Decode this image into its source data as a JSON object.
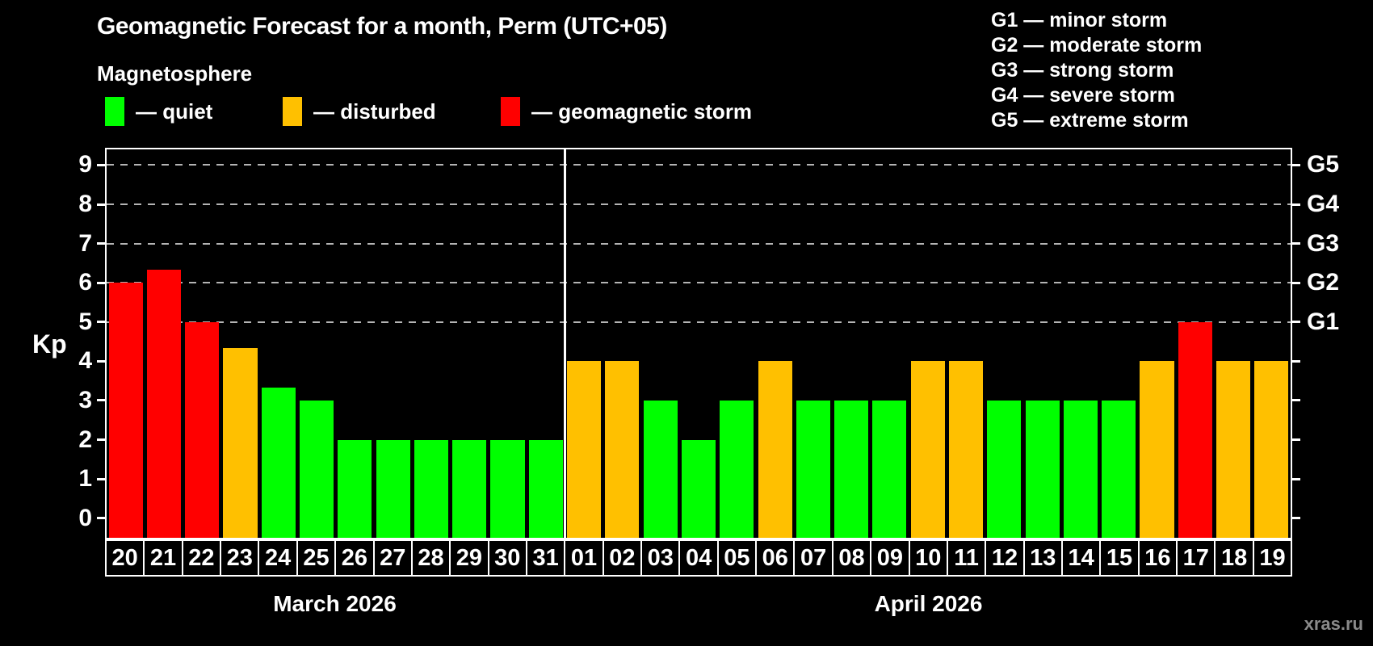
{
  "title": "Geomagnetic Forecast for a month, Perm (UTC+05)",
  "subtitle": "Magnetosphere",
  "legend": {
    "quiet": {
      "label": "— quiet",
      "color": "#00ff00"
    },
    "disturbed": {
      "label": "— disturbed",
      "color": "#ffc000"
    },
    "storm": {
      "label": "— geomagnetic storm",
      "color": "#ff0000"
    }
  },
  "storm_scale_legend": [
    "G1 — minor storm",
    "G2 — moderate storm",
    "G3 — strong storm",
    "G4 — severe storm",
    "G5 — extreme storm"
  ],
  "watermark": "xras.ru",
  "chart_data": {
    "type": "bar",
    "ylabel": "Kp",
    "ylim": [
      0,
      9.4
    ],
    "y_ticks": [
      0,
      1,
      2,
      3,
      4,
      5,
      6,
      7,
      8,
      9
    ],
    "gridlines_at": [
      5,
      6,
      7,
      8,
      9
    ],
    "grid_style": "dashed gray horizontal lines at storm thresholds",
    "right_axis_labels": [
      {
        "kp": 5,
        "label": "G1"
      },
      {
        "kp": 6,
        "label": "G2"
      },
      {
        "kp": 7,
        "label": "G3"
      },
      {
        "kp": 8,
        "label": "G4"
      },
      {
        "kp": 9,
        "label": "G5"
      }
    ],
    "months": [
      {
        "label": "March 2026",
        "days": [
          {
            "day": "20",
            "kp": 6.0,
            "level": "storm"
          },
          {
            "day": "21",
            "kp": 6.33,
            "level": "storm"
          },
          {
            "day": "22",
            "kp": 5.0,
            "level": "storm"
          },
          {
            "day": "23",
            "kp": 4.33,
            "level": "disturbed"
          },
          {
            "day": "24",
            "kp": 3.33,
            "level": "quiet"
          },
          {
            "day": "25",
            "kp": 3.0,
            "level": "quiet"
          },
          {
            "day": "26",
            "kp": 2.0,
            "level": "quiet"
          },
          {
            "day": "27",
            "kp": 2.0,
            "level": "quiet"
          },
          {
            "day": "28",
            "kp": 2.0,
            "level": "quiet"
          },
          {
            "day": "29",
            "kp": 2.0,
            "level": "quiet"
          },
          {
            "day": "30",
            "kp": 2.0,
            "level": "quiet"
          },
          {
            "day": "31",
            "kp": 2.0,
            "level": "quiet"
          }
        ]
      },
      {
        "label": "April 2026",
        "days": [
          {
            "day": "01",
            "kp": 4.0,
            "level": "disturbed"
          },
          {
            "day": "02",
            "kp": 4.0,
            "level": "disturbed"
          },
          {
            "day": "03",
            "kp": 3.0,
            "level": "quiet"
          },
          {
            "day": "04",
            "kp": 2.0,
            "level": "quiet"
          },
          {
            "day": "05",
            "kp": 3.0,
            "level": "quiet"
          },
          {
            "day": "06",
            "kp": 4.0,
            "level": "disturbed"
          },
          {
            "day": "07",
            "kp": 3.0,
            "level": "quiet"
          },
          {
            "day": "08",
            "kp": 3.0,
            "level": "quiet"
          },
          {
            "day": "09",
            "kp": 3.0,
            "level": "quiet"
          },
          {
            "day": "10",
            "kp": 4.0,
            "level": "disturbed"
          },
          {
            "day": "11",
            "kp": 4.0,
            "level": "disturbed"
          },
          {
            "day": "12",
            "kp": 3.0,
            "level": "quiet"
          },
          {
            "day": "13",
            "kp": 3.0,
            "level": "quiet"
          },
          {
            "day": "14",
            "kp": 3.0,
            "level": "quiet"
          },
          {
            "day": "15",
            "kp": 3.0,
            "level": "quiet"
          },
          {
            "day": "16",
            "kp": 4.0,
            "level": "disturbed"
          },
          {
            "day": "17",
            "kp": 5.0,
            "level": "storm"
          },
          {
            "day": "18",
            "kp": 4.0,
            "level": "disturbed"
          },
          {
            "day": "19",
            "kp": 4.0,
            "level": "disturbed"
          }
        ]
      }
    ]
  }
}
